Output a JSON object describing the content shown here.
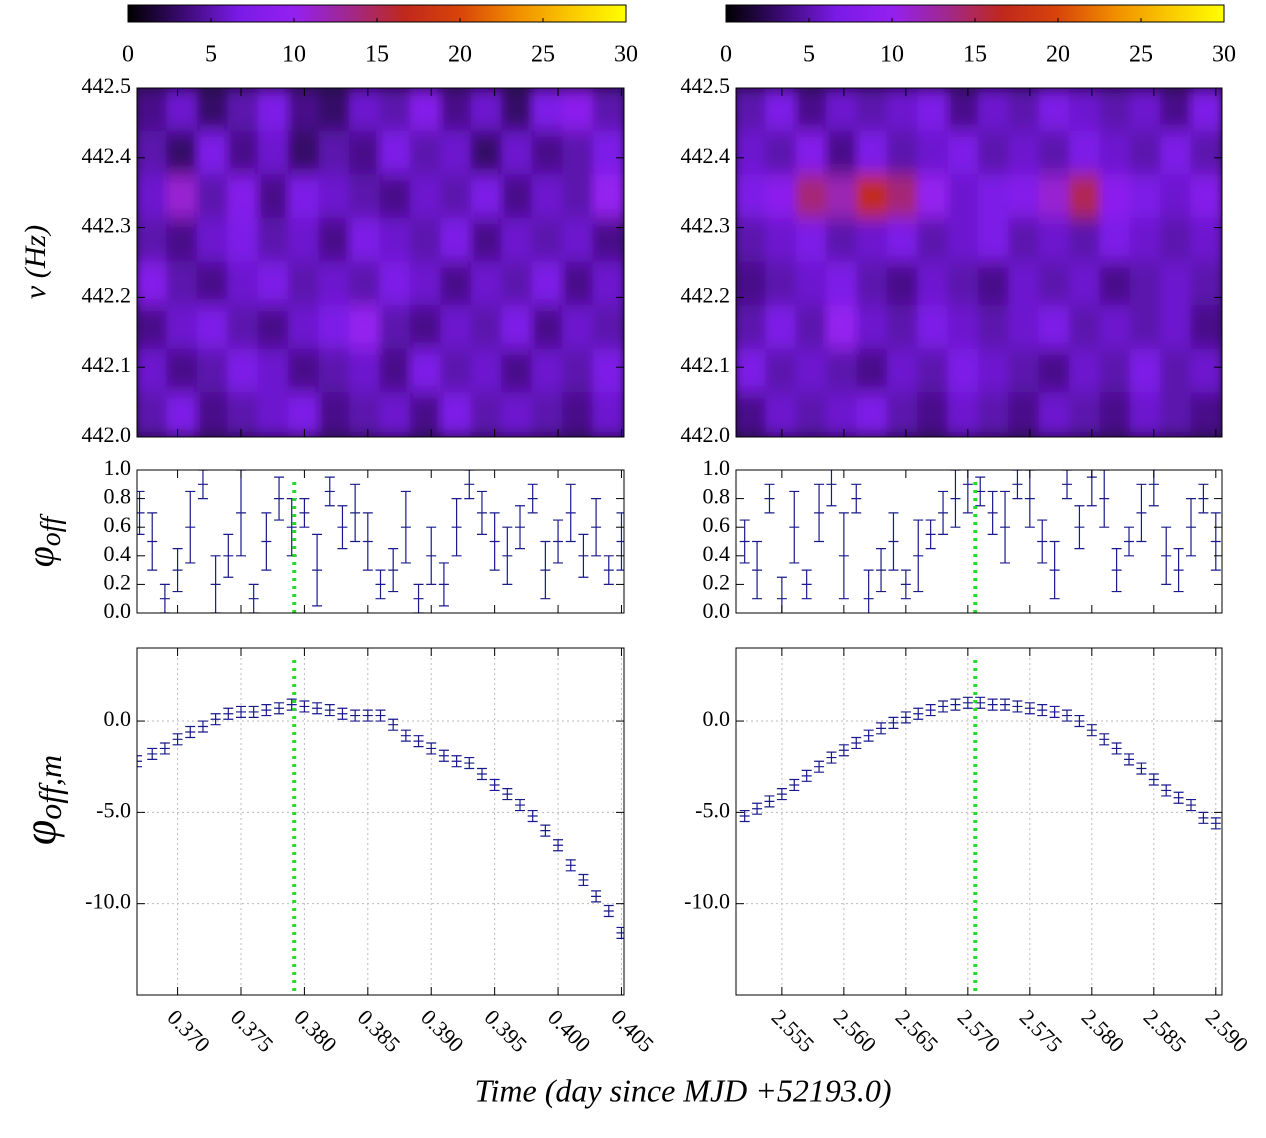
{
  "chart_data": [
    {
      "type": "heatmap",
      "colormap": [
        "#000000",
        "#3b0a73",
        "#7a1ae6",
        "#9420f0",
        "#a0288c",
        "#c0281c",
        "#d8440a",
        "#f08c00",
        "#fac800",
        "#ffff00"
      ],
      "colorbar": {
        "lim": [
          0,
          30
        ],
        "ticks": [
          0,
          5,
          10,
          15,
          20,
          25,
          30
        ]
      },
      "xlim": [
        0.3668,
        0.4052
      ],
      "xticks": [
        0.37,
        0.375,
        0.38,
        0.385,
        0.39,
        0.395,
        0.4,
        0.405
      ],
      "ylim": [
        442.0,
        442.5
      ],
      "yticks": [
        {
          "value": 442.0,
          "label": "442.0"
        },
        442.1,
        442.2,
        442.3,
        442.4,
        442.5
      ],
      "ylabel": "ν (Hz)",
      "z": [
        [
          4,
          6,
          3,
          5,
          7,
          4,
          3,
          6,
          5,
          8,
          4,
          6,
          3,
          7,
          9,
          5
        ],
        [
          5,
          3,
          7,
          4,
          6,
          3,
          5,
          4,
          7,
          5,
          6,
          3,
          6,
          4,
          5,
          7
        ],
        [
          6,
          11,
          5,
          8,
          4,
          7,
          6,
          5,
          4,
          6,
          5,
          7,
          4,
          6,
          5,
          10
        ],
        [
          5,
          4,
          6,
          7,
          5,
          6,
          4,
          7,
          6,
          5,
          7,
          4,
          6,
          5,
          6,
          4
        ],
        [
          8,
          5,
          4,
          6,
          7,
          5,
          6,
          5,
          7,
          6,
          4,
          6,
          5,
          7,
          4,
          6
        ],
        [
          4,
          6,
          7,
          5,
          4,
          6,
          7,
          10,
          5,
          4,
          6,
          5,
          7,
          4,
          6,
          5
        ],
        [
          6,
          4,
          5,
          7,
          6,
          4,
          5,
          6,
          4,
          7,
          5,
          6,
          4,
          6,
          5,
          7
        ],
        [
          5,
          7,
          4,
          5,
          6,
          7,
          4,
          5,
          6,
          4,
          7,
          5,
          6,
          5,
          4,
          6
        ]
      ]
    },
    {
      "type": "errorbar",
      "color": "#1a1a8c",
      "vline": {
        "x": 0.3792,
        "color": "#22dd22"
      },
      "xlim": [
        0.3668,
        0.4052
      ],
      "xticks": [
        0.37,
        0.375,
        0.38,
        0.385,
        0.39,
        0.395,
        0.4,
        0.405
      ],
      "ylim": [
        0,
        1
      ],
      "yticks": [
        {
          "value": 0,
          "label": "0.0"
        },
        0.2,
        0.4,
        0.6,
        0.8,
        {
          "value": 1,
          "label": "1.0"
        }
      ],
      "ylabel": {
        "symbol": "φ",
        "subscript": "off"
      },
      "grid": false,
      "x": [
        0.367,
        0.368,
        0.369,
        0.37,
        0.371,
        0.372,
        0.373,
        0.374,
        0.375,
        0.376,
        0.377,
        0.378,
        0.379,
        0.38,
        0.381,
        0.382,
        0.383,
        0.384,
        0.385,
        0.386,
        0.387,
        0.388,
        0.389,
        0.39,
        0.391,
        0.392,
        0.393,
        0.394,
        0.395,
        0.396,
        0.397,
        0.398,
        0.399,
        0.4,
        0.401,
        0.402,
        0.403,
        0.404,
        0.405
      ],
      "values": [
        0.7,
        0.5,
        0.1,
        0.3,
        0.6,
        0.9,
        0.2,
        0.4,
        0.7,
        0.1,
        0.5,
        0.8,
        0.6,
        0.7,
        0.3,
        0.85,
        0.6,
        0.7,
        0.5,
        0.2,
        0.3,
        0.6,
        0.1,
        0.4,
        0.2,
        0.6,
        0.9,
        0.7,
        0.5,
        0.4,
        0.6,
        0.8,
        0.3,
        0.5,
        0.7,
        0.4,
        0.6,
        0.3,
        0.5
      ],
      "errors": [
        0.15,
        0.2,
        0.1,
        0.15,
        0.25,
        0.1,
        0.2,
        0.15,
        0.3,
        0.1,
        0.2,
        0.15,
        0.2,
        0.1,
        0.25,
        0.1,
        0.15,
        0.2,
        0.2,
        0.1,
        0.15,
        0.25,
        0.1,
        0.2,
        0.15,
        0.2,
        0.1,
        0.15,
        0.2,
        0.2,
        0.15,
        0.1,
        0.2,
        0.15,
        0.2,
        0.15,
        0.2,
        0.1,
        0.2
      ]
    },
    {
      "type": "errorbar",
      "color": "#1a1a8c",
      "vline": {
        "x": 0.3792,
        "color": "#22dd22"
      },
      "xlim": [
        0.3668,
        0.4052
      ],
      "xticks": [
        {
          "value": 0.37,
          "label": "0.370"
        },
        {
          "value": 0.375,
          "label": "0.375"
        },
        {
          "value": 0.38,
          "label": "0.380"
        },
        {
          "value": 0.385,
          "label": "0.385"
        },
        {
          "value": 0.39,
          "label": "0.390"
        },
        {
          "value": 0.395,
          "label": "0.395"
        },
        {
          "value": 0.4,
          "label": "0.400"
        },
        {
          "value": 0.405,
          "label": "0.405"
        }
      ],
      "ylim": [
        -15,
        4
      ],
      "yticks": [
        {
          "value": -10,
          "label": "-10.0"
        },
        {
          "value": -5,
          "label": "-5.0"
        },
        {
          "value": 0,
          "label": "0.0"
        }
      ],
      "ylabel": {
        "symbol": "φ",
        "subscript": "off,m"
      },
      "grid": true,
      "xlabel": "Time (day since MJD +52193.0)",
      "x": [
        0.3668,
        0.368,
        0.369,
        0.37,
        0.371,
        0.372,
        0.373,
        0.374,
        0.375,
        0.376,
        0.377,
        0.378,
        0.379,
        0.38,
        0.381,
        0.382,
        0.383,
        0.384,
        0.385,
        0.386,
        0.387,
        0.388,
        0.389,
        0.39,
        0.391,
        0.392,
        0.393,
        0.394,
        0.395,
        0.396,
        0.397,
        0.398,
        0.399,
        0.4,
        0.401,
        0.402,
        0.403,
        0.404,
        0.405
      ],
      "values": [
        -2.2,
        -1.8,
        -1.5,
        -1.0,
        -0.6,
        -0.3,
        0.1,
        0.4,
        0.5,
        0.5,
        0.6,
        0.7,
        0.9,
        0.8,
        0.7,
        0.6,
        0.4,
        0.3,
        0.3,
        0.3,
        -0.2,
        -0.8,
        -1.1,
        -1.5,
        -1.9,
        -2.2,
        -2.3,
        -2.9,
        -3.5,
        -4.0,
        -4.6,
        -5.2,
        -6.0,
        -6.8,
        -7.9,
        -8.7,
        -9.6,
        -10.4,
        -11.6
      ],
      "errors": [
        0.3,
        0.3,
        0.3,
        0.3,
        0.3,
        0.3,
        0.3,
        0.3,
        0.3,
        0.3,
        0.3,
        0.3,
        0.3,
        0.3,
        0.3,
        0.3,
        0.3,
        0.3,
        0.3,
        0.3,
        0.3,
        0.3,
        0.3,
        0.3,
        0.3,
        0.3,
        0.3,
        0.3,
        0.3,
        0.3,
        0.3,
        0.3,
        0.3,
        0.3,
        0.3,
        0.3,
        0.3,
        0.3,
        0.3
      ]
    },
    {
      "type": "heatmap",
      "colormap": [
        "#000000",
        "#3b0a73",
        "#7a1ae6",
        "#9420f0",
        "#a0288c",
        "#c0281c",
        "#d8440a",
        "#f08c00",
        "#fac800",
        "#ffff00"
      ],
      "colorbar": {
        "lim": [
          0,
          30
        ],
        "ticks": [
          0,
          5,
          10,
          15,
          20,
          25,
          30
        ]
      },
      "xlim": [
        2.5513,
        2.5905
      ],
      "xticks": [
        2.555,
        2.56,
        2.565,
        2.57,
        2.575,
        2.58,
        2.585,
        2.59
      ],
      "ylim": [
        442.0,
        442.5
      ],
      "yticks": [
        {
          "value": 442.0,
          "label": "442.0"
        },
        442.1,
        442.2,
        442.3,
        442.4,
        442.5
      ],
      "z": [
        [
          5,
          7,
          4,
          6,
          5,
          6,
          7,
          4,
          6,
          5,
          7,
          6,
          5,
          6,
          4,
          7
        ],
        [
          6,
          5,
          8,
          4,
          7,
          5,
          6,
          7,
          5,
          6,
          5,
          7,
          6,
          5,
          7,
          5
        ],
        [
          7,
          9,
          14,
          12,
          17,
          14,
          10,
          6,
          7,
          8,
          11,
          15,
          9,
          7,
          6,
          8
        ],
        [
          5,
          6,
          7,
          5,
          6,
          7,
          5,
          6,
          7,
          5,
          6,
          5,
          7,
          6,
          5,
          6
        ],
        [
          4,
          5,
          6,
          7,
          5,
          4,
          6,
          5,
          4,
          6,
          5,
          6,
          4,
          5,
          6,
          5
        ],
        [
          5,
          7,
          5,
          10,
          6,
          5,
          7,
          6,
          5,
          6,
          7,
          5,
          6,
          5,
          6,
          4
        ],
        [
          7,
          5,
          6,
          5,
          4,
          6,
          5,
          7,
          6,
          5,
          4,
          6,
          5,
          7,
          5,
          6
        ],
        [
          4,
          6,
          5,
          6,
          7,
          5,
          4,
          6,
          5,
          4,
          6,
          5,
          4,
          6,
          5,
          4
        ]
      ]
    },
    {
      "type": "errorbar",
      "color": "#1a1a8c",
      "vline": {
        "x": 2.5706,
        "color": "#22dd22"
      },
      "xlim": [
        2.5513,
        2.5905
      ],
      "xticks": [
        2.555,
        2.56,
        2.565,
        2.57,
        2.575,
        2.58,
        2.585,
        2.59
      ],
      "ylim": [
        0,
        1
      ],
      "yticks": [
        {
          "value": 0,
          "label": "0.0"
        },
        0.2,
        0.4,
        0.6,
        0.8,
        {
          "value": 1,
          "label": "1.0"
        }
      ],
      "grid": false,
      "x": [
        2.552,
        2.553,
        2.554,
        2.555,
        2.556,
        2.557,
        2.558,
        2.559,
        2.56,
        2.561,
        2.562,
        2.563,
        2.564,
        2.565,
        2.566,
        2.567,
        2.568,
        2.569,
        2.57,
        2.571,
        2.572,
        2.573,
        2.574,
        2.575,
        2.576,
        2.577,
        2.578,
        2.579,
        2.58,
        2.581,
        2.582,
        2.583,
        2.584,
        2.585,
        2.586,
        2.587,
        2.588,
        2.589,
        2.59
      ],
      "values": [
        0.5,
        0.3,
        0.8,
        0.1,
        0.6,
        0.2,
        0.7,
        0.9,
        0.4,
        0.8,
        0.1,
        0.3,
        0.5,
        0.2,
        0.4,
        0.55,
        0.7,
        0.8,
        0.9,
        0.85,
        0.7,
        0.6,
        0.9,
        0.8,
        0.5,
        0.3,
        0.9,
        0.6,
        0.95,
        0.8,
        0.3,
        0.5,
        0.7,
        0.9,
        0.4,
        0.3,
        0.6,
        0.8,
        0.5
      ],
      "errors": [
        0.15,
        0.2,
        0.1,
        0.15,
        0.25,
        0.1,
        0.2,
        0.15,
        0.3,
        0.1,
        0.2,
        0.15,
        0.2,
        0.1,
        0.25,
        0.1,
        0.15,
        0.2,
        0.2,
        0.1,
        0.15,
        0.25,
        0.1,
        0.2,
        0.15,
        0.2,
        0.1,
        0.15,
        0.2,
        0.2,
        0.15,
        0.1,
        0.2,
        0.15,
        0.2,
        0.15,
        0.2,
        0.1,
        0.2
      ]
    },
    {
      "type": "errorbar",
      "color": "#1a1a8c",
      "vline": {
        "x": 2.5706,
        "color": "#22dd22"
      },
      "xlim": [
        2.5513,
        2.5905
      ],
      "xticks": [
        {
          "value": 2.555,
          "label": "2.555"
        },
        {
          "value": 2.56,
          "label": "2.560"
        },
        {
          "value": 2.565,
          "label": "2.565"
        },
        {
          "value": 2.57,
          "label": "2.570"
        },
        {
          "value": 2.575,
          "label": "2.575"
        },
        {
          "value": 2.58,
          "label": "2.580"
        },
        {
          "value": 2.585,
          "label": "2.585"
        },
        {
          "value": 2.59,
          "label": "2.590"
        }
      ],
      "ylim": [
        -15,
        4
      ],
      "yticks": [
        {
          "value": -10,
          "label": "-10.0"
        },
        {
          "value": -5,
          "label": "-5.0"
        },
        {
          "value": 0,
          "label": "0.0"
        }
      ],
      "grid": true,
      "x": [
        2.552,
        2.553,
        2.554,
        2.555,
        2.556,
        2.557,
        2.558,
        2.559,
        2.56,
        2.561,
        2.562,
        2.563,
        2.564,
        2.565,
        2.566,
        2.567,
        2.568,
        2.569,
        2.57,
        2.571,
        2.572,
        2.573,
        2.574,
        2.575,
        2.576,
        2.577,
        2.578,
        2.579,
        2.58,
        2.581,
        2.582,
        2.583,
        2.584,
        2.585,
        2.586,
        2.587,
        2.588,
        2.589,
        2.59
      ],
      "values": [
        -5.2,
        -4.8,
        -4.4,
        -4.0,
        -3.5,
        -3.0,
        -2.5,
        -2.0,
        -1.6,
        -1.2,
        -0.8,
        -0.4,
        -0.1,
        0.2,
        0.4,
        0.6,
        0.8,
        0.9,
        1.0,
        1.0,
        0.9,
        0.9,
        0.8,
        0.7,
        0.6,
        0.5,
        0.3,
        0.0,
        -0.5,
        -1.0,
        -1.5,
        -2.1,
        -2.6,
        -3.2,
        -3.8,
        -4.2,
        -4.6,
        -5.3,
        -5.6
      ],
      "errors": [
        0.3,
        0.3,
        0.3,
        0.3,
        0.3,
        0.3,
        0.3,
        0.3,
        0.3,
        0.3,
        0.3,
        0.3,
        0.3,
        0.3,
        0.3,
        0.3,
        0.3,
        0.3,
        0.3,
        0.3,
        0.3,
        0.3,
        0.3,
        0.3,
        0.3,
        0.3,
        0.3,
        0.3,
        0.3,
        0.3,
        0.3,
        0.3,
        0.3,
        0.3,
        0.3,
        0.3,
        0.3,
        0.3,
        0.3
      ]
    }
  ]
}
